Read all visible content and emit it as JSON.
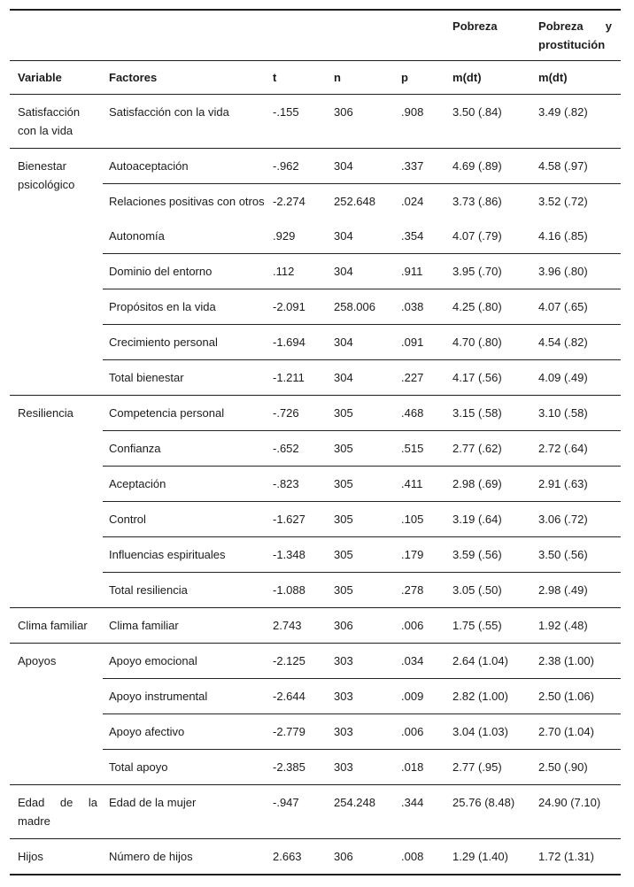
{
  "table": {
    "group_headers": {
      "col_m1": "Pobreza",
      "col_m2": "Pobreza y prostitución"
    },
    "columns": [
      "Variable",
      "Factores",
      "t",
      "n",
      "p",
      "m(dt)",
      "m(dt)"
    ],
    "sections": [
      {
        "variable": "Satisfacción con la vida",
        "rows": [
          {
            "factor": "Satisfacción con la vida",
            "t": "-.155",
            "n": "306",
            "p": ".908",
            "m1": "3.50 (.84)",
            "m2": "3.49 (.82)"
          }
        ]
      },
      {
        "variable": "Bienestar psicológico",
        "rows": [
          {
            "factor": "Autoaceptación",
            "t": "-.962",
            "n": "304",
            "p": ".337",
            "m1": "4.69 (.89)",
            "m2": "4.58 (.97)"
          },
          {
            "factor": "Relaciones positivas con otros",
            "t": "-2.274",
            "n": "252.648",
            "p": ".024",
            "m1": "3.73 (.86)",
            "m2": "3.52 (.72)"
          },
          {
            "factor": "Autonomía",
            "t": ".929",
            "n": "304",
            "p": ".354",
            "m1": "4.07 (.79)",
            "m2": "4.16 (.85)",
            "line_above": false
          },
          {
            "factor": "Dominio del entorno",
            "t": ".112",
            "n": "304",
            "p": ".911",
            "m1": "3.95 (.70)",
            "m2": "3.96 (.80)"
          },
          {
            "factor": "Propósitos en la vida",
            "t": "-2.091",
            "n": "258.006",
            "p": ".038",
            "m1": "4.25 (.80)",
            "m2": "4.07 (.65)"
          },
          {
            "factor": "Crecimiento personal",
            "t": "-1.694",
            "n": "304",
            "p": ".091",
            "m1": "4.70 (.80)",
            "m2": "4.54 (.82)"
          },
          {
            "factor": "Total bienestar",
            "t": "-1.211",
            "n": "304",
            "p": ".227",
            "m1": "4.17 (.56)",
            "m2": "4.09 (.49)"
          }
        ]
      },
      {
        "variable": "Resiliencia",
        "rows": [
          {
            "factor": "Competencia personal",
            "t": "-.726",
            "n": "305",
            "p": ".468",
            "m1": "3.15 (.58)",
            "m2": "3.10 (.58)"
          },
          {
            "factor": "Confianza",
            "t": "-.652",
            "n": "305",
            "p": ".515",
            "m1": "2.77 (.62)",
            "m2": "2.72 (.64)"
          },
          {
            "factor": "Aceptación",
            "t": "-.823",
            "n": "305",
            "p": ".411",
            "m1": "2.98 (.69)",
            "m2": "2.91 (.63)"
          },
          {
            "factor": "Control",
            "t": "-1.627",
            "n": "305",
            "p": ".105",
            "m1": "3.19 (.64)",
            "m2": "3.06 (.72)"
          },
          {
            "factor": "Influencias espirituales",
            "t": "-1.348",
            "n": "305",
            "p": ".179",
            "m1": "3.59 (.56)",
            "m2": "3.50 (.56)"
          },
          {
            "factor": "Total resiliencia",
            "t": "-1.088",
            "n": "305",
            "p": ".278",
            "m1": "3.05 (.50)",
            "m2": "2.98 (.49)"
          }
        ]
      },
      {
        "variable": "Clima familiar",
        "rows": [
          {
            "factor": "Clima familiar",
            "t": "2.743",
            "n": "306",
            "p": ".006",
            "m1": "1.75 (.55)",
            "m2": "1.92 (.48)"
          }
        ]
      },
      {
        "variable": "Apoyos",
        "rows": [
          {
            "factor": "Apoyo emocional",
            "t": "-2.125",
            "n": "303",
            "p": ".034",
            "m1": "2.64 (1.04)",
            "m2": "2.38 (1.00)"
          },
          {
            "factor": "Apoyo instrumental",
            "t": "-2.644",
            "n": "303",
            "p": ".009",
            "m1": "2.82 (1.00)",
            "m2": "2.50 (1.06)"
          },
          {
            "factor": "Apoyo afectivo",
            "t": "-2.779",
            "n": "303",
            "p": ".006",
            "m1": "3.04 (1.03)",
            "m2": "2.70 (1.04)"
          },
          {
            "factor": "Total apoyo",
            "t": "-2.385",
            "n": "303",
            "p": ".018",
            "m1": "2.77 (.95)",
            "m2": "2.50 (.90)"
          }
        ]
      },
      {
        "variable": "Edad de la madre",
        "rows": [
          {
            "factor": "Edad de la mujer",
            "t": "-.947",
            "n": "254.248",
            "p": ".344",
            "m1": "25.76 (8.48)",
            "m2": "24.90 (7.10)"
          }
        ]
      },
      {
        "variable": "Hijos",
        "rows": [
          {
            "factor": "Número de hijos",
            "t": "2.663",
            "n": "306",
            "p": ".008",
            "m1": "1.29 (1.40)",
            "m2": "1.72 (1.31)"
          }
        ]
      }
    ]
  }
}
